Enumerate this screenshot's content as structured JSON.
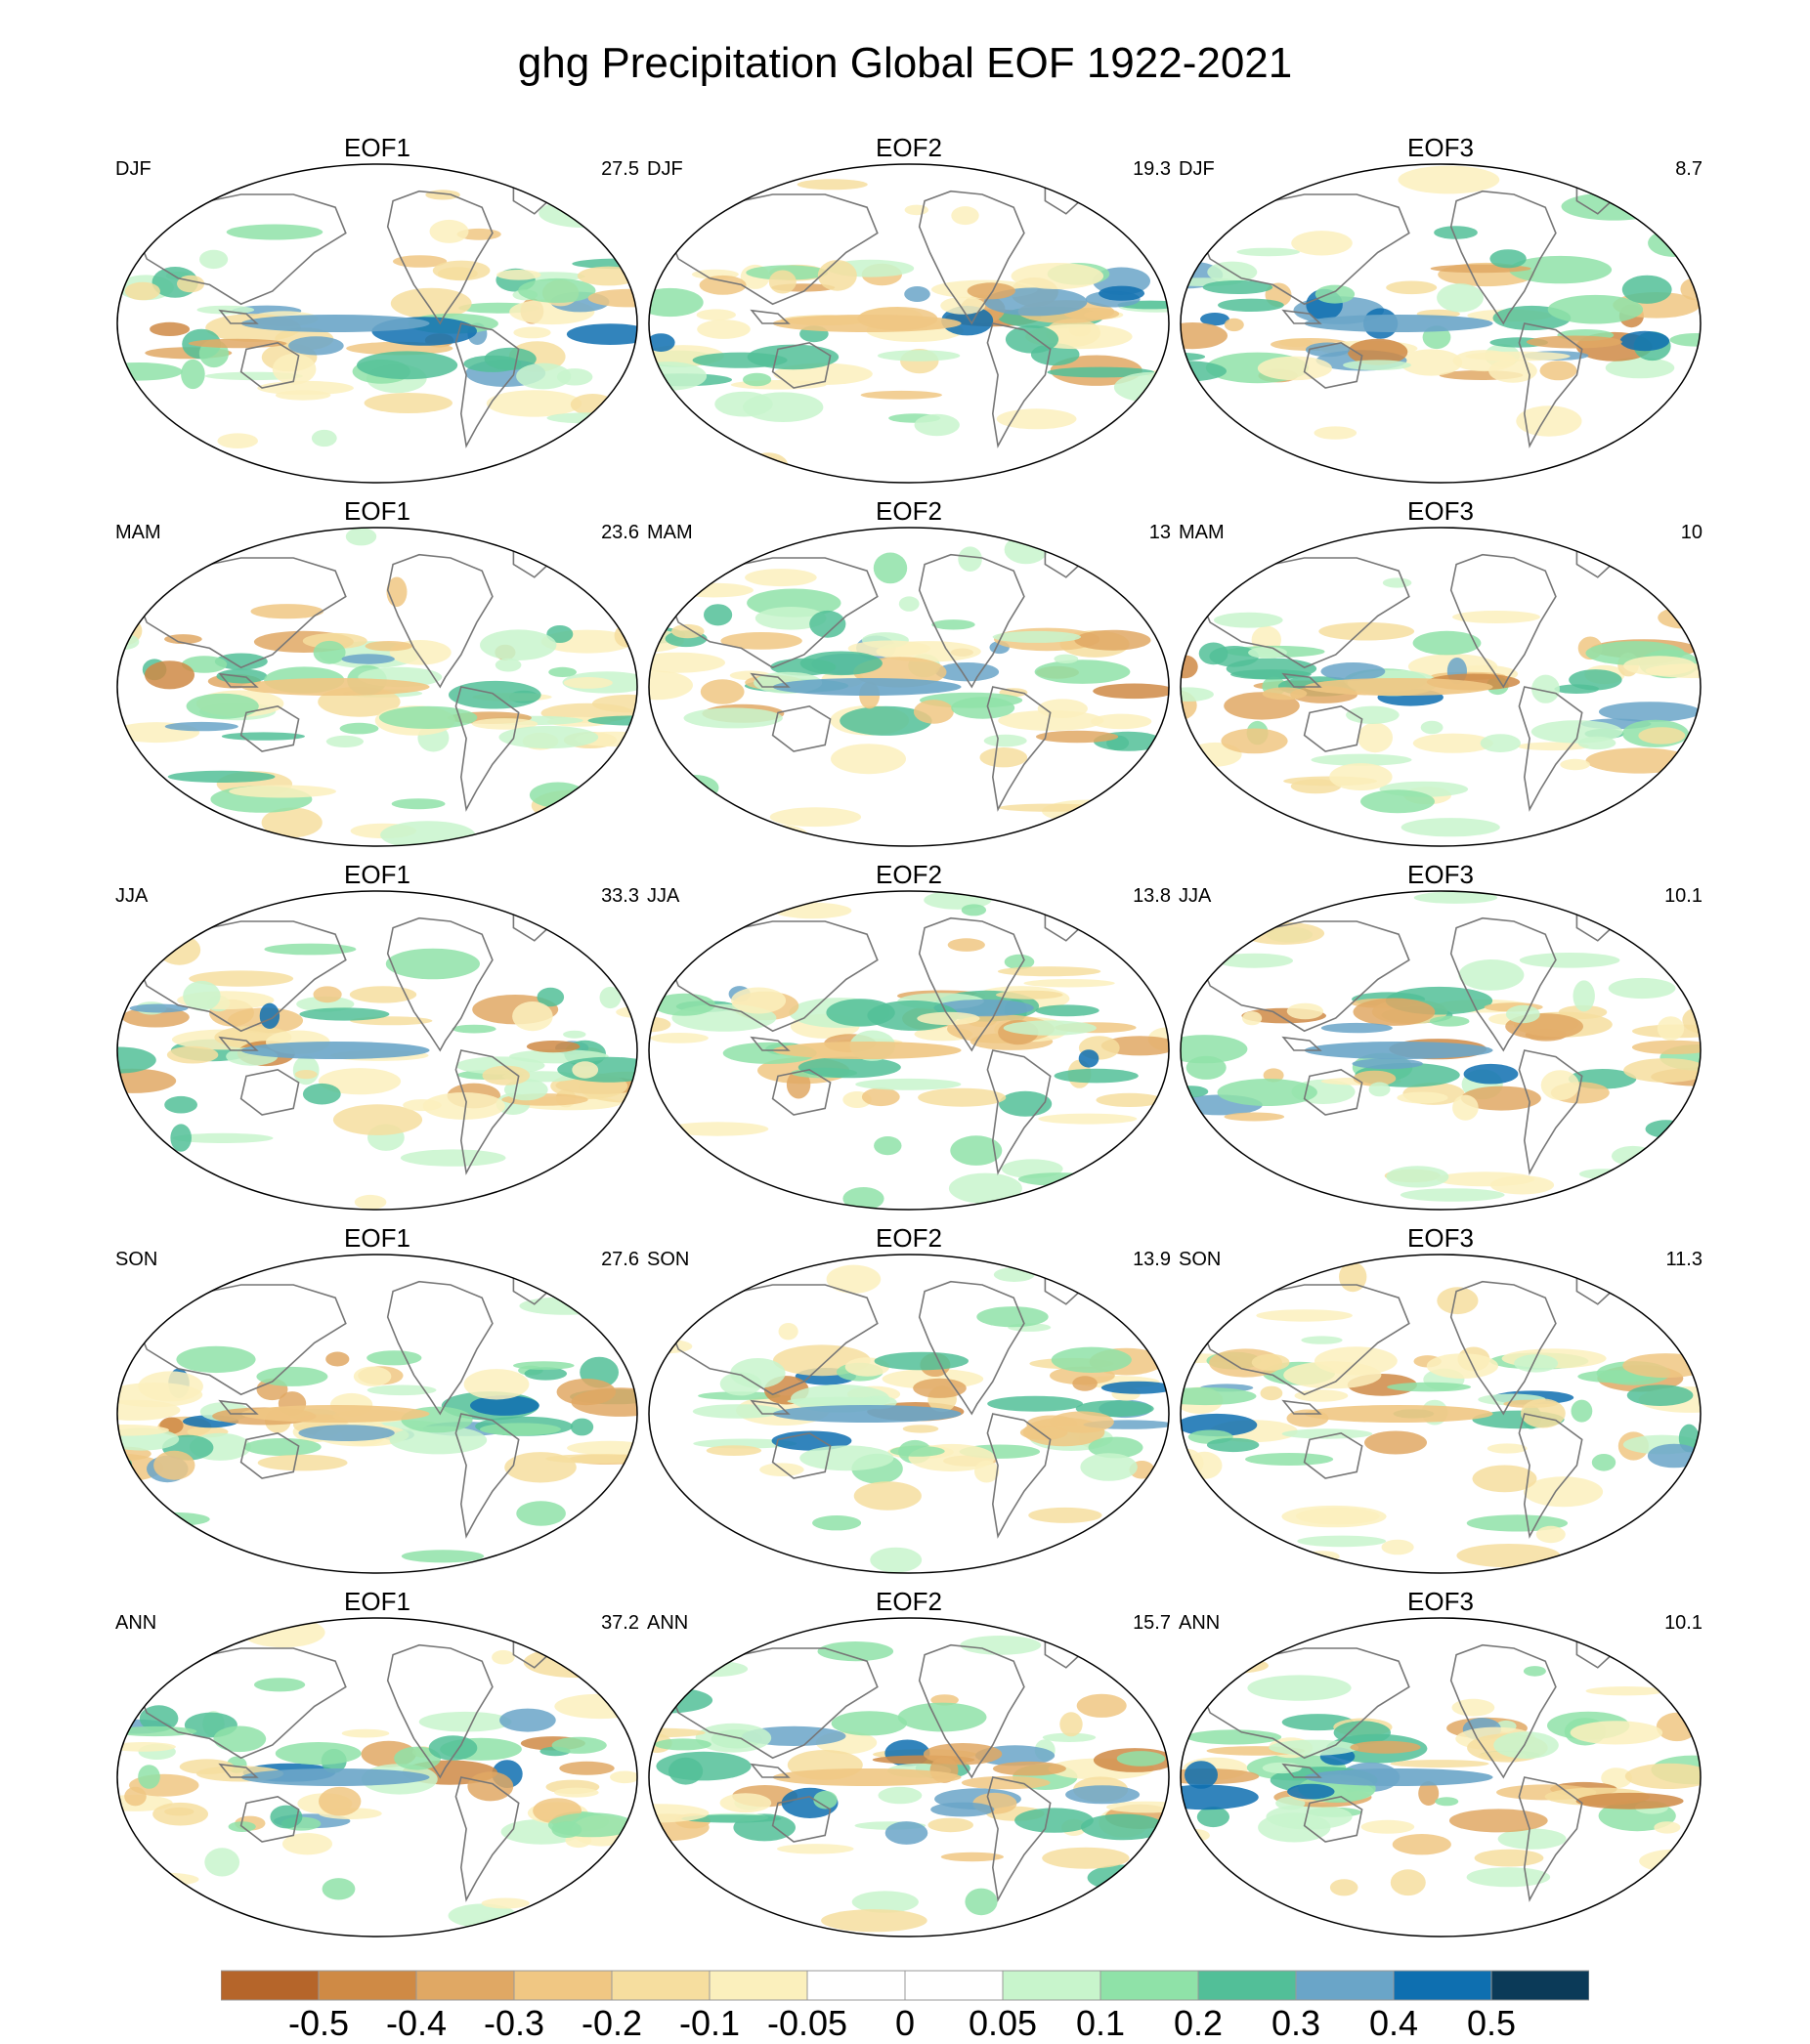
{
  "title": "ghg Precipitation Global EOF 1922-2021",
  "eof_labels": [
    "EOF1",
    "EOF2",
    "EOF3"
  ],
  "rows": [
    {
      "season": "DJF",
      "pct": [
        "27.5",
        "19.3",
        "8.7"
      ]
    },
    {
      "season": "MAM",
      "pct": [
        "23.6",
        "13",
        "10"
      ]
    },
    {
      "season": "JJA",
      "pct": [
        "33.3",
        "13.8",
        "10.1"
      ]
    },
    {
      "season": "SON",
      "pct": [
        "27.6",
        "13.9",
        "11.3"
      ]
    },
    {
      "season": "ANN",
      "pct": [
        "37.2",
        "15.7",
        "10.1"
      ]
    }
  ],
  "colorbar": {
    "labels": [
      "-0.5",
      "-0.4",
      "-0.3",
      "-0.2",
      "-0.1",
      "-0.05",
      "0",
      "0.05",
      "0.1",
      "0.2",
      "0.3",
      "0.4",
      "0.5"
    ],
    "colors": [
      "#b5652a",
      "#cf8a45",
      "#e0a864",
      "#f0c783",
      "#f6de9f",
      "#fbf0bd",
      "#ffffff",
      "#ffffff",
      "#c8f5cc",
      "#8fe2a8",
      "#52bf98",
      "#6aa5c8",
      "#0e6fb0",
      "#0b3a58"
    ]
  },
  "map_colors": {
    "coast": "#777777",
    "border": "#000000"
  }
}
